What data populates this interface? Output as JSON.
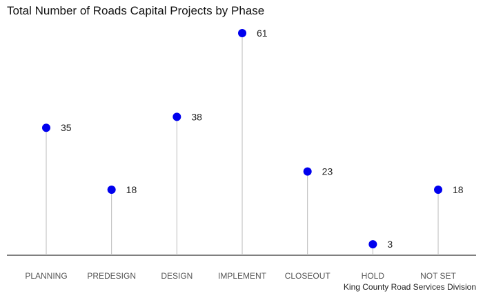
{
  "chart_data": {
    "type": "lollipop",
    "title": "Total Number of Roads Capital Projects by Phase",
    "caption": "King County Road Services Division",
    "categories": [
      "PLANNING",
      "PREDESIGN",
      "DESIGN",
      "IMPLEMENT",
      "CLOSEOUT",
      "HOLD",
      "NOT SET"
    ],
    "values": [
      35,
      18,
      38,
      61,
      23,
      3,
      18
    ],
    "xlabel": "",
    "ylabel": "",
    "ylim": [
      0,
      61
    ],
    "grid": false,
    "legend": "none",
    "colors": {
      "point": "#0000ee",
      "stem": "#bbbbbb",
      "axis": "#000000"
    }
  }
}
